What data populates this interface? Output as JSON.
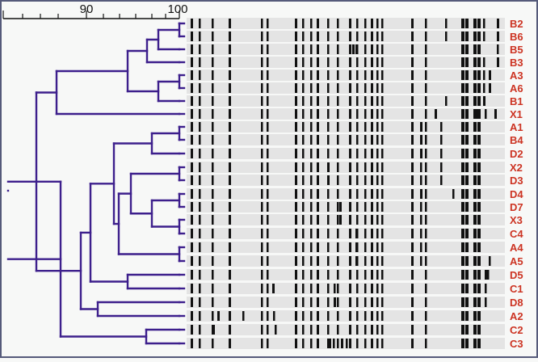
{
  "scale": {
    "labels": [
      "90",
      "100"
    ]
  },
  "samples": [
    "B2",
    "B6",
    "B5",
    "B3",
    "A3",
    "A6",
    "B1",
    "X1",
    "A1",
    "B4",
    "D2",
    "X2",
    "D3",
    "D4",
    "D7",
    "X3",
    "C4",
    "A4",
    "A5",
    "D5",
    "C1",
    "D8",
    "A2",
    "C2",
    "C3"
  ],
  "colors": {
    "frame": "#555a7a",
    "tree": "#3d1f8c",
    "label": "#cc3322",
    "band": "#111111",
    "lane": "#e4e4e4",
    "background": "#f7f8f7"
  },
  "chart_data": {
    "type": "dendrogram",
    "axis": {
      "min": 80,
      "max": 100,
      "ticks": [
        90,
        100
      ],
      "unit": "% similarity"
    },
    "leaves": [
      "B2",
      "B6",
      "B5",
      "B3",
      "A3",
      "A6",
      "B1",
      "X1",
      "A1",
      "B4",
      "D2",
      "X2",
      "D3",
      "D4",
      "D7",
      "X3",
      "C4",
      "A4",
      "A5",
      "D5",
      "C1",
      "D8",
      "A2",
      "C2",
      "C3"
    ]
  }
}
